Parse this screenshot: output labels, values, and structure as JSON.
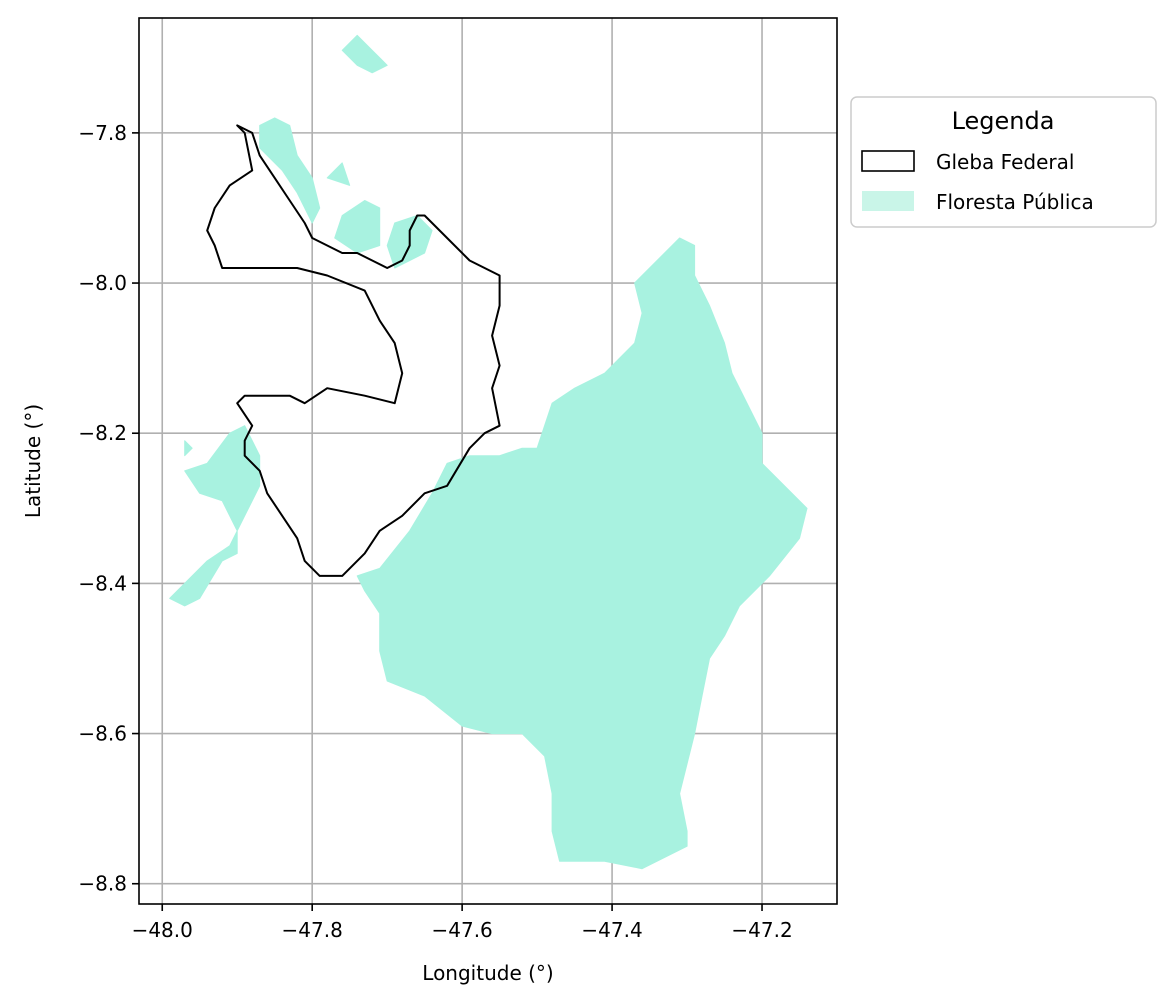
{
  "map": {
    "xlabel": "Longitude (°)",
    "ylabel": "Latitude (°)",
    "x_ticks": [
      {
        "value": -48.0,
        "label": "−48.0"
      },
      {
        "value": -47.8,
        "label": "−47.8"
      },
      {
        "value": -47.6,
        "label": "−47.6"
      },
      {
        "value": -47.4,
        "label": "−47.4"
      },
      {
        "value": -47.2,
        "label": "−47.2"
      }
    ],
    "y_ticks": [
      {
        "value": -7.8,
        "label": "−7.8"
      },
      {
        "value": -8.0,
        "label": "−8.0"
      },
      {
        "value": -8.2,
        "label": "−8.2"
      },
      {
        "value": -8.4,
        "label": "−8.4"
      },
      {
        "value": -8.6,
        "label": "−8.6"
      },
      {
        "value": -8.8,
        "label": "−8.8"
      }
    ],
    "xlim": [
      -48.031,
      -47.1
    ],
    "ylim": [
      -8.827,
      -7.647
    ],
    "grid": true,
    "legend": {
      "placement": "outside-right-top",
      "title": "Legenda",
      "items": [
        {
          "label": "Gleba Federal",
          "style": "outline",
          "edge_color": "#000000",
          "fill": "#ffffff"
        },
        {
          "label": "Floresta Pública",
          "style": "fill",
          "fill": "#c9f5e8"
        }
      ]
    },
    "colors": {
      "forest": "#a8f2e0",
      "gleba_outline": "#000000",
      "grid": "#b0b0b0"
    },
    "layers": {
      "floresta_publica": [
        [
          [
            -47.59,
            -8.23
          ],
          [
            -47.55,
            -8.23
          ],
          [
            -47.52,
            -8.22
          ],
          [
            -47.5,
            -8.22
          ],
          [
            -47.48,
            -8.16
          ],
          [
            -47.45,
            -8.14
          ],
          [
            -47.41,
            -8.12
          ],
          [
            -47.37,
            -8.08
          ],
          [
            -47.36,
            -8.04
          ],
          [
            -47.37,
            -8.0
          ],
          [
            -47.34,
            -7.97
          ],
          [
            -47.31,
            -7.94
          ],
          [
            -47.29,
            -7.95
          ],
          [
            -47.29,
            -7.99
          ],
          [
            -47.27,
            -8.03
          ],
          [
            -47.25,
            -8.08
          ],
          [
            -47.24,
            -8.12
          ],
          [
            -47.22,
            -8.16
          ],
          [
            -47.2,
            -8.2
          ],
          [
            -47.2,
            -8.24
          ],
          [
            -47.17,
            -8.27
          ],
          [
            -47.14,
            -8.3
          ],
          [
            -47.15,
            -8.34
          ],
          [
            -47.19,
            -8.39
          ],
          [
            -47.23,
            -8.43
          ],
          [
            -47.25,
            -8.47
          ],
          [
            -47.27,
            -8.5
          ],
          [
            -47.28,
            -8.55
          ],
          [
            -47.29,
            -8.6
          ],
          [
            -47.3,
            -8.64
          ],
          [
            -47.31,
            -8.68
          ],
          [
            -47.3,
            -8.73
          ],
          [
            -47.3,
            -8.75
          ],
          [
            -47.36,
            -8.78
          ],
          [
            -47.41,
            -8.77
          ],
          [
            -47.47,
            -8.77
          ],
          [
            -47.48,
            -8.73
          ],
          [
            -47.48,
            -8.68
          ],
          [
            -47.49,
            -8.63
          ],
          [
            -47.52,
            -8.6
          ],
          [
            -47.56,
            -8.6
          ],
          [
            -47.6,
            -8.59
          ],
          [
            -47.65,
            -8.55
          ],
          [
            -47.7,
            -8.53
          ],
          [
            -47.71,
            -8.49
          ],
          [
            -47.71,
            -8.44
          ],
          [
            -47.73,
            -8.41
          ],
          [
            -47.74,
            -8.39
          ],
          [
            -47.71,
            -8.38
          ],
          [
            -47.67,
            -8.33
          ],
          [
            -47.64,
            -8.28
          ],
          [
            -47.62,
            -8.24
          ]
        ],
        [
          [
            -47.8,
            -7.92
          ],
          [
            -47.82,
            -7.88
          ],
          [
            -47.84,
            -7.85
          ],
          [
            -47.87,
            -7.82
          ],
          [
            -47.87,
            -7.79
          ],
          [
            -47.85,
            -7.78
          ],
          [
            -47.83,
            -7.79
          ],
          [
            -47.82,
            -7.83
          ],
          [
            -47.8,
            -7.86
          ],
          [
            -47.79,
            -7.9
          ]
        ],
        [
          [
            -47.76,
            -7.91
          ],
          [
            -47.73,
            -7.89
          ],
          [
            -47.71,
            -7.9
          ],
          [
            -47.71,
            -7.95
          ],
          [
            -47.74,
            -7.96
          ],
          [
            -47.77,
            -7.94
          ]
        ],
        [
          [
            -47.67,
            -7.97
          ],
          [
            -47.65,
            -7.96
          ],
          [
            -47.64,
            -7.93
          ],
          [
            -47.66,
            -7.91
          ],
          [
            -47.69,
            -7.92
          ],
          [
            -47.7,
            -7.95
          ],
          [
            -47.69,
            -7.98
          ]
        ],
        [
          [
            -47.74,
            -7.71
          ],
          [
            -47.72,
            -7.72
          ],
          [
            -47.7,
            -7.71
          ],
          [
            -47.72,
            -7.69
          ],
          [
            -47.74,
            -7.67
          ],
          [
            -47.76,
            -7.69
          ]
        ],
        [
          [
            -47.78,
            -7.86
          ],
          [
            -47.76,
            -7.84
          ],
          [
            -47.75,
            -7.87
          ]
        ],
        [
          [
            -47.89,
            -8.19
          ],
          [
            -47.87,
            -8.23
          ],
          [
            -47.87,
            -8.27
          ],
          [
            -47.89,
            -8.31
          ],
          [
            -47.91,
            -8.35
          ],
          [
            -47.94,
            -8.37
          ],
          [
            -47.97,
            -8.4
          ],
          [
            -47.99,
            -8.42
          ],
          [
            -47.97,
            -8.43
          ],
          [
            -47.95,
            -8.42
          ],
          [
            -47.92,
            -8.37
          ],
          [
            -47.9,
            -8.36
          ],
          [
            -47.9,
            -8.33
          ],
          [
            -47.92,
            -8.29
          ],
          [
            -47.95,
            -8.28
          ],
          [
            -47.97,
            -8.25
          ],
          [
            -47.94,
            -8.24
          ],
          [
            -47.91,
            -8.2
          ]
        ],
        [
          [
            -47.97,
            -8.21
          ],
          [
            -47.96,
            -8.22
          ],
          [
            -47.97,
            -8.23
          ]
        ]
      ],
      "gleba_federal": [
        [
          [
            -47.9,
            -7.79
          ],
          [
            -47.89,
            -7.8
          ],
          [
            -47.88,
            -7.85
          ],
          [
            -47.91,
            -7.87
          ],
          [
            -47.93,
            -7.9
          ],
          [
            -47.94,
            -7.93
          ],
          [
            -47.93,
            -7.95
          ],
          [
            -47.92,
            -7.98
          ],
          [
            -47.9,
            -7.98
          ],
          [
            -47.86,
            -7.98
          ],
          [
            -47.82,
            -7.98
          ],
          [
            -47.78,
            -7.99
          ],
          [
            -47.73,
            -8.01
          ],
          [
            -47.71,
            -8.05
          ],
          [
            -47.69,
            -8.08
          ],
          [
            -47.68,
            -8.12
          ],
          [
            -47.69,
            -8.16
          ],
          [
            -47.73,
            -8.15
          ],
          [
            -47.78,
            -8.14
          ],
          [
            -47.81,
            -8.16
          ],
          [
            -47.83,
            -8.15
          ],
          [
            -47.89,
            -8.15
          ],
          [
            -47.9,
            -8.16
          ],
          [
            -47.88,
            -8.19
          ],
          [
            -47.89,
            -8.21
          ],
          [
            -47.89,
            -8.23
          ],
          [
            -47.87,
            -8.25
          ],
          [
            -47.86,
            -8.28
          ],
          [
            -47.84,
            -8.31
          ],
          [
            -47.82,
            -8.34
          ],
          [
            -47.81,
            -8.37
          ],
          [
            -47.79,
            -8.39
          ],
          [
            -47.76,
            -8.39
          ],
          [
            -47.73,
            -8.36
          ],
          [
            -47.71,
            -8.33
          ],
          [
            -47.68,
            -8.31
          ],
          [
            -47.65,
            -8.28
          ],
          [
            -47.62,
            -8.27
          ],
          [
            -47.59,
            -8.22
          ],
          [
            -47.57,
            -8.2
          ],
          [
            -47.55,
            -8.19
          ],
          [
            -47.56,
            -8.14
          ],
          [
            -47.55,
            -8.11
          ],
          [
            -47.56,
            -8.07
          ],
          [
            -47.55,
            -8.03
          ],
          [
            -47.55,
            -7.99
          ],
          [
            -47.57,
            -7.98
          ],
          [
            -47.59,
            -7.97
          ],
          [
            -47.62,
            -7.94
          ],
          [
            -47.63,
            -7.93
          ],
          [
            -47.65,
            -7.91
          ],
          [
            -47.66,
            -7.91
          ],
          [
            -47.67,
            -7.93
          ],
          [
            -47.67,
            -7.95
          ],
          [
            -47.68,
            -7.97
          ],
          [
            -47.7,
            -7.98
          ],
          [
            -47.72,
            -7.97
          ],
          [
            -47.74,
            -7.96
          ],
          [
            -47.76,
            -7.96
          ],
          [
            -47.78,
            -7.95
          ],
          [
            -47.8,
            -7.94
          ],
          [
            -47.81,
            -7.92
          ],
          [
            -47.83,
            -7.89
          ],
          [
            -47.85,
            -7.86
          ],
          [
            -47.87,
            -7.83
          ],
          [
            -47.88,
            -7.8
          ]
        ]
      ]
    }
  }
}
